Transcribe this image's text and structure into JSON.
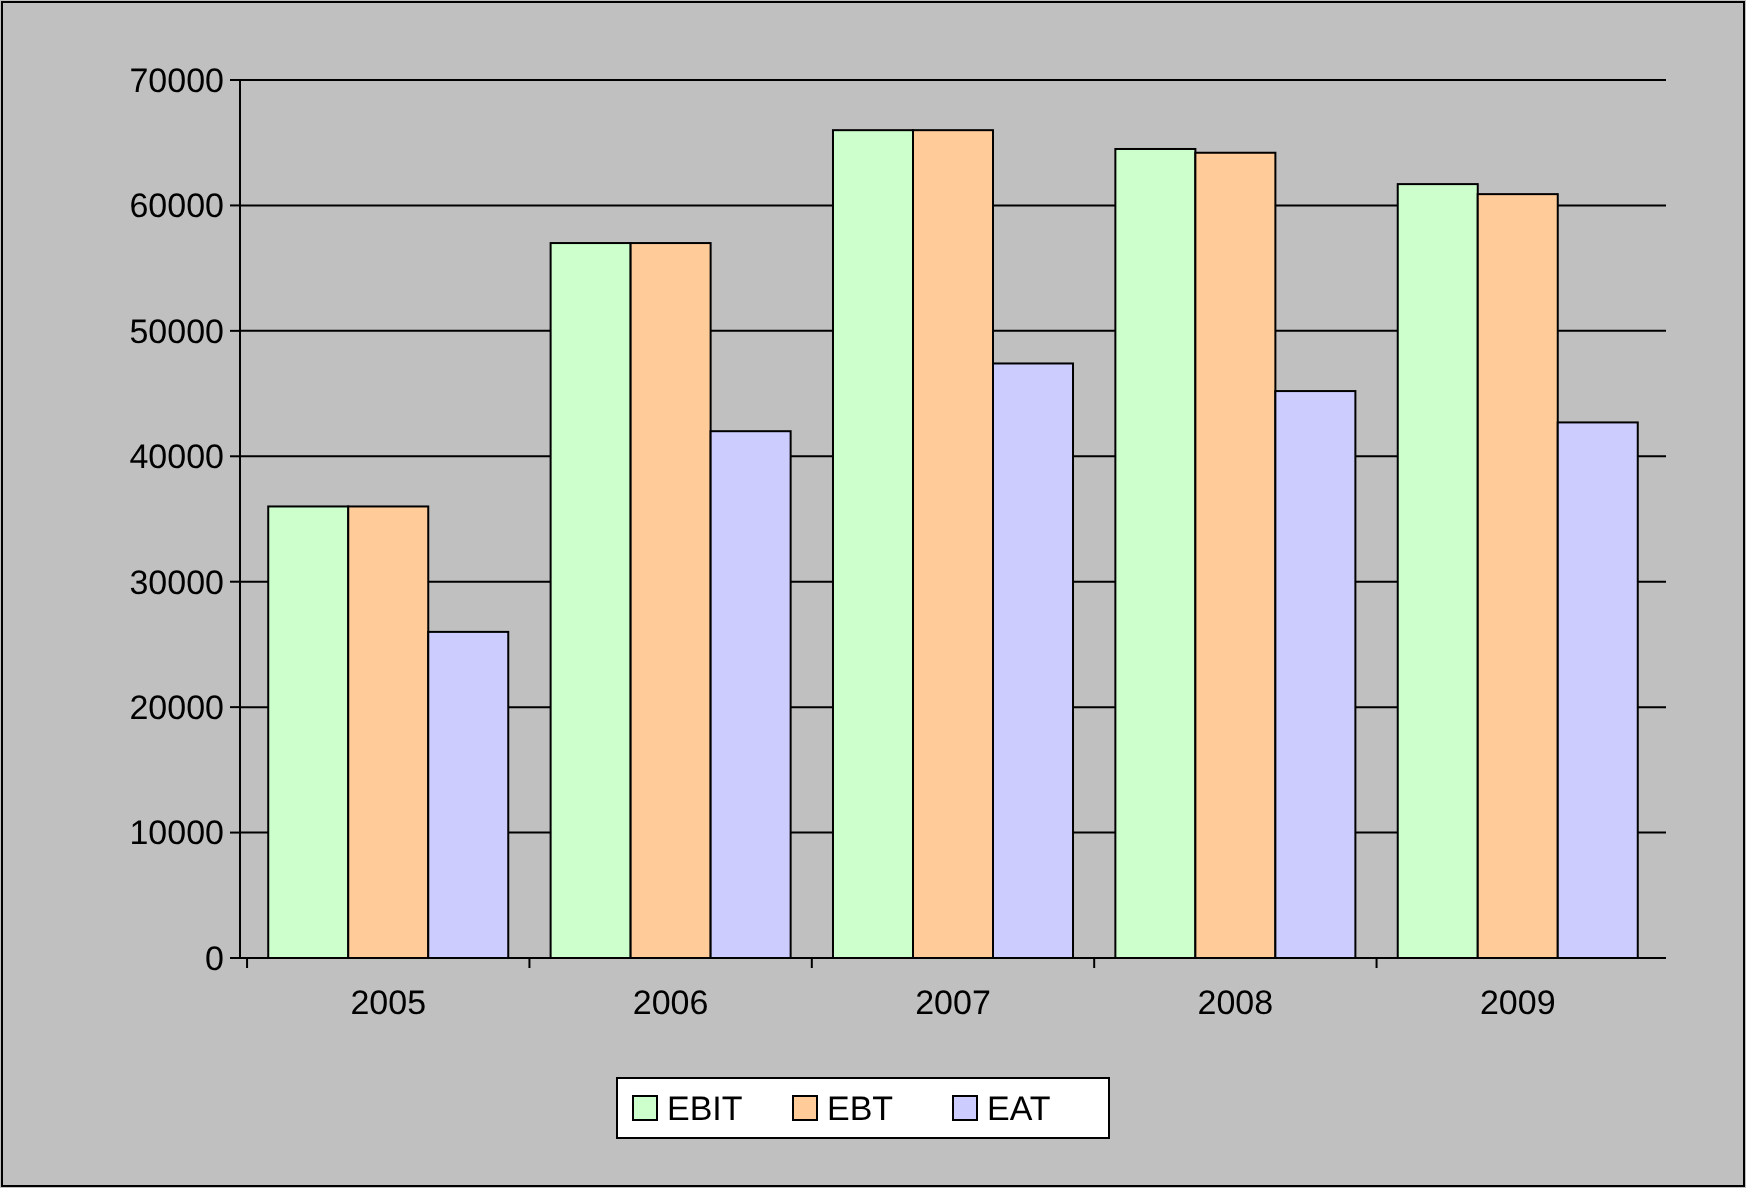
{
  "chart_data": {
    "type": "bar",
    "categories": [
      "2005",
      "2006",
      "2007",
      "2008",
      "2009"
    ],
    "series": [
      {
        "name": "EBIT",
        "color": "#ccffcc",
        "values": [
          36000,
          57000,
          66000,
          64500,
          61700
        ]
      },
      {
        "name": "EBT",
        "color": "#ffcc99",
        "values": [
          36000,
          57000,
          66000,
          64200,
          60900
        ]
      },
      {
        "name": "EAT",
        "color": "#ccccff",
        "values": [
          26000,
          42000,
          47400,
          45200,
          42700
        ]
      }
    ],
    "ylim": [
      0,
      70000
    ],
    "yticks": [
      0,
      10000,
      20000,
      30000,
      40000,
      50000,
      60000,
      70000
    ],
    "grid": "y",
    "legend": "bottom"
  }
}
